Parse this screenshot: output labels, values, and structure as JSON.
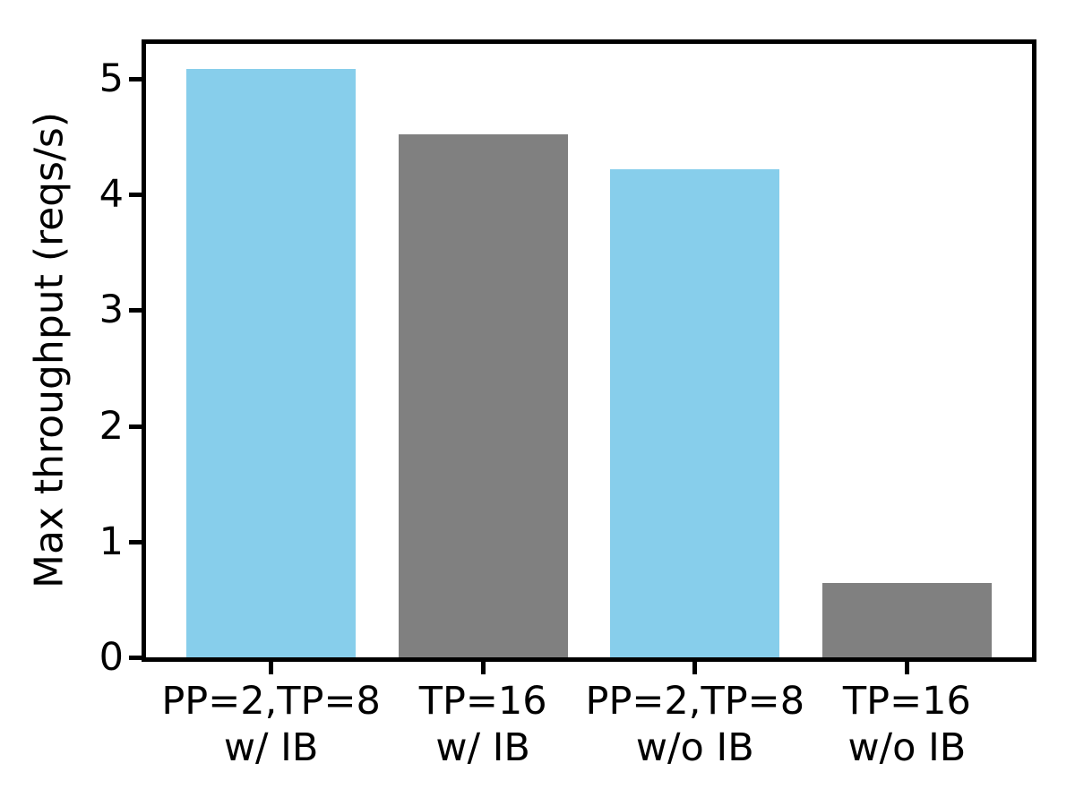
{
  "chart_data": {
    "type": "bar",
    "title": "",
    "xlabel": "",
    "ylabel": "Max throughput (reqs/s)",
    "categories": [
      "PP=2,TP=8 w/ IB",
      "TP=16 w/ IB",
      "PP=2,TP=8 w/o IB",
      "TP=16 w/o IB"
    ],
    "category_lines": [
      [
        "PP=2,TP=8",
        "w/ IB"
      ],
      [
        "TP=16",
        "w/ IB"
      ],
      [
        "PP=2,TP=8",
        "w/o IB"
      ],
      [
        "TP=16",
        "w/o IB"
      ]
    ],
    "values": [
      5.08,
      4.52,
      4.22,
      0.64
    ],
    "bar_colors": [
      "#87ceeb",
      "#808080",
      "#87ceeb",
      "#808080"
    ],
    "yticks": [
      0,
      1,
      2,
      3,
      4,
      5
    ],
    "ylim": [
      0,
      5.3
    ],
    "xlim": [
      -0.59,
      3.59
    ],
    "bar_width": 0.8,
    "grid": false,
    "legend": null,
    "colors": {
      "skyblue": "#87ceeb",
      "gray": "#808080",
      "axis": "#000000",
      "background": "#ffffff"
    }
  }
}
